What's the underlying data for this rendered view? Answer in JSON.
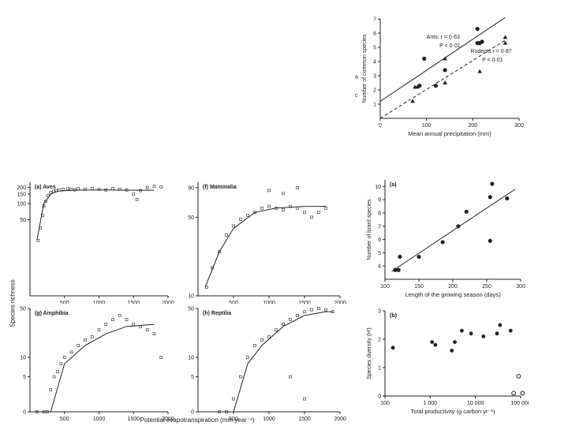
{
  "chart_data": [
    {
      "id": "ants_rodents",
      "type": "scatter",
      "xlabel": "Mean annual precipitation (mm)",
      "ylabel": "Number of common species",
      "xlim": [
        0,
        300
      ],
      "ylim": [
        0,
        7
      ],
      "xticks": [
        0,
        100,
        200,
        300
      ],
      "yticks": [
        1,
        2,
        3,
        4,
        5,
        6,
        7
      ],
      "series": [
        {
          "name": "Ants",
          "marker": "circle",
          "points": [
            [
              85,
              2.3
            ],
            [
              95,
              4.2
            ],
            [
              120,
              2.3
            ],
            [
              140,
              3.4
            ],
            [
              210,
              6.3
            ],
            [
              215,
              5.3
            ],
            [
              220,
              5.4
            ],
            [
              210,
              5.3
            ]
          ],
          "fit": [
            [
              0,
              1.2
            ],
            [
              270,
              7.1
            ]
          ]
        },
        {
          "name": "Rodents",
          "marker": "triangle",
          "points": [
            [
              70,
              1.2
            ],
            [
              75,
              2.2
            ],
            [
              80,
              2.2
            ],
            [
              140,
              2.5
            ],
            [
              140,
              4.2
            ],
            [
              215,
              3.3
            ],
            [
              270,
              5.7
            ],
            [
              270,
              5.3
            ]
          ],
          "fit": [
            [
              0,
              0
            ],
            [
              270,
              5.5
            ]
          ]
        }
      ],
      "annotations": [
        {
          "text": "Ants: r = 0·63",
          "x": 100,
          "y": 5.6
        },
        {
          "text": "P < 0·01",
          "x": 128,
          "y": 5.0
        },
        {
          "text": "Rodents r = 0·87",
          "x": 195,
          "y": 4.6
        },
        {
          "text": "P < 0·01",
          "x": 220,
          "y": 4.0
        }
      ],
      "side_labels": [
        "a",
        "c"
      ]
    },
    {
      "id": "aves",
      "type": "scatter",
      "title": "(a) Aves",
      "log_y": true,
      "xlim": [
        0,
        2000
      ],
      "ylim": [
        0,
        250
      ],
      "xticks": [
        500,
        1000,
        1500,
        2000
      ],
      "yticks": [
        50,
        100,
        150,
        200
      ],
      "points": [
        [
          120,
          20
        ],
        [
          150,
          35
        ],
        [
          180,
          60
        ],
        [
          200,
          90
        ],
        [
          230,
          110
        ],
        [
          260,
          140
        ],
        [
          300,
          160
        ],
        [
          340,
          170
        ],
        [
          380,
          175
        ],
        [
          420,
          180
        ],
        [
          480,
          185
        ],
        [
          550,
          190
        ],
        [
          600,
          185
        ],
        [
          650,
          180
        ],
        [
          700,
          190
        ],
        [
          800,
          185
        ],
        [
          900,
          190
        ],
        [
          1000,
          185
        ],
        [
          1100,
          180
        ],
        [
          1200,
          190
        ],
        [
          1300,
          185
        ],
        [
          1400,
          180
        ],
        [
          1500,
          150
        ],
        [
          1550,
          120
        ],
        [
          1600,
          175
        ],
        [
          1700,
          200
        ],
        [
          1800,
          210
        ],
        [
          1900,
          205
        ]
      ],
      "fit": [
        [
          100,
          20
        ],
        [
          200,
          100
        ],
        [
          300,
          150
        ],
        [
          400,
          170
        ],
        [
          600,
          178
        ],
        [
          1000,
          180
        ],
        [
          1500,
          178
        ],
        [
          1800,
          178
        ]
      ]
    },
    {
      "id": "mammalia",
      "type": "scatter",
      "title": "(f) Mammalia",
      "log_y": true,
      "xlim": [
        0,
        2000
      ],
      "ylim": [
        10,
        100
      ],
      "xticks": [
        500,
        1000,
        1500,
        2000
      ],
      "yticks": [
        10,
        50,
        90
      ],
      "points": [
        [
          120,
          12
        ],
        [
          200,
          18
        ],
        [
          300,
          25
        ],
        [
          400,
          35
        ],
        [
          500,
          42
        ],
        [
          600,
          48
        ],
        [
          700,
          52
        ],
        [
          800,
          55
        ],
        [
          900,
          60
        ],
        [
          1000,
          62
        ],
        [
          1100,
          60
        ],
        [
          1200,
          58
        ],
        [
          1300,
          62
        ],
        [
          1400,
          60
        ],
        [
          1500,
          55
        ],
        [
          1600,
          50
        ],
        [
          1700,
          55
        ],
        [
          1800,
          60
        ],
        [
          1000,
          85
        ],
        [
          1200,
          80
        ],
        [
          1400,
          90
        ]
      ],
      "fit": [
        [
          100,
          12
        ],
        [
          300,
          25
        ],
        [
          500,
          40
        ],
        [
          800,
          55
        ],
        [
          1100,
          60
        ],
        [
          1500,
          62
        ],
        [
          1800,
          62
        ]
      ]
    },
    {
      "id": "amphibia",
      "type": "scatter",
      "title": "(g) Amphibia",
      "log_y": true,
      "xlim": [
        0,
        2000
      ],
      "ylim": [
        0,
        50
      ],
      "xticks": [
        500,
        1000,
        1500,
        2000
      ],
      "yticks": [
        0,
        5,
        10,
        50
      ],
      "points": [
        [
          100,
          0
        ],
        [
          200,
          0
        ],
        [
          250,
          0
        ],
        [
          300,
          3
        ],
        [
          350,
          5
        ],
        [
          400,
          6
        ],
        [
          450,
          8
        ],
        [
          500,
          10
        ],
        [
          600,
          12
        ],
        [
          700,
          15
        ],
        [
          800,
          18
        ],
        [
          900,
          20
        ],
        [
          1000,
          25
        ],
        [
          1100,
          30
        ],
        [
          1200,
          35
        ],
        [
          1300,
          40
        ],
        [
          1400,
          35
        ],
        [
          1500,
          30
        ],
        [
          1600,
          28
        ],
        [
          1700,
          25
        ],
        [
          1800,
          22
        ],
        [
          1900,
          10
        ]
      ],
      "fit": [
        [
          300,
          1
        ],
        [
          500,
          8
        ],
        [
          800,
          15
        ],
        [
          1100,
          22
        ],
        [
          1400,
          28
        ],
        [
          1800,
          30
        ]
      ],
      "baseline": [
        [
          0,
          0
        ],
        [
          2000,
          0
        ]
      ]
    },
    {
      "id": "reptilia",
      "type": "scatter",
      "title": "(h) Reptilia",
      "log_y": true,
      "xlim": [
        0,
        2000
      ],
      "ylim": [
        0,
        50
      ],
      "xticks": [
        500,
        1000,
        1500,
        2000
      ],
      "yticks": [
        0,
        5,
        10,
        50
      ],
      "points": [
        [
          300,
          0
        ],
        [
          400,
          1
        ],
        [
          500,
          2
        ],
        [
          600,
          5
        ],
        [
          700,
          10
        ],
        [
          800,
          15
        ],
        [
          900,
          18
        ],
        [
          1000,
          20
        ],
        [
          1100,
          25
        ],
        [
          1200,
          30
        ],
        [
          1300,
          35
        ],
        [
          1400,
          40
        ],
        [
          1500,
          45
        ],
        [
          1600,
          48
        ],
        [
          1700,
          50
        ],
        [
          1800,
          48
        ],
        [
          1900,
          45
        ],
        [
          1300,
          5
        ],
        [
          1500,
          2
        ]
      ],
      "fit": [
        [
          500,
          1
        ],
        [
          700,
          8
        ],
        [
          900,
          15
        ],
        [
          1200,
          28
        ],
        [
          1500,
          40
        ],
        [
          1800,
          45
        ],
        [
          1900,
          45
        ]
      ],
      "baseline": [
        [
          0,
          0
        ],
        [
          2000,
          0
        ]
      ]
    },
    {
      "id": "lizards",
      "type": "scatter",
      "title": "(a)",
      "xlabel": "Length of the growing season (days)",
      "ylabel": "Number of lizard species",
      "xlim": [
        100,
        300
      ],
      "ylim": [
        3,
        10.5
      ],
      "xticks": [
        100,
        150,
        200,
        250,
        300
      ],
      "yticks": [
        4,
        5,
        6,
        7,
        8,
        9,
        10
      ],
      "points": [
        [
          115,
          3.7
        ],
        [
          120,
          3.7
        ],
        [
          122,
          4.7
        ],
        [
          150,
          4.7
        ],
        [
          185,
          5.8
        ],
        [
          208,
          7.0
        ],
        [
          220,
          8.1
        ],
        [
          255,
          9.2
        ],
        [
          258,
          10.2
        ],
        [
          255,
          5.9
        ],
        [
          280,
          9.1
        ]
      ],
      "fit": [
        [
          110,
          3.6
        ],
        [
          292,
          9.8
        ]
      ]
    },
    {
      "id": "productivity",
      "type": "scatter",
      "title": "(b)",
      "xlabel": "Total productivity (g carbon yr⁻¹)",
      "ylabel": "Species diversity (H')",
      "xlim": [
        100,
        100000
      ],
      "log_x": true,
      "ylim": [
        0,
        3
      ],
      "xticks": [
        100,
        1000,
        10000,
        100000
      ],
      "xtick_labels": [
        "100",
        "1 000",
        "10 000",
        "100 000"
      ],
      "yticks": [
        0,
        1,
        2,
        3
      ],
      "points_filled": [
        [
          150,
          1.7
        ],
        [
          1100,
          1.9
        ],
        [
          1300,
          1.8
        ],
        [
          3000,
          1.6
        ],
        [
          3500,
          1.9
        ],
        [
          5000,
          2.3
        ],
        [
          8000,
          2.2
        ],
        [
          15000,
          2.1
        ],
        [
          30000,
          2.2
        ],
        [
          35000,
          2.5
        ],
        [
          60000,
          2.3
        ]
      ],
      "points_open": [
        [
          70000,
          0.1
        ],
        [
          90000,
          0.7
        ],
        [
          110000,
          0.1
        ]
      ]
    }
  ],
  "shared_xlabel": "Potential evapotranspiration (mm year⁻¹)",
  "shared_ylabel": "Species richness",
  "colors": {
    "ink": "#222222",
    "paper": "#ffffff"
  }
}
